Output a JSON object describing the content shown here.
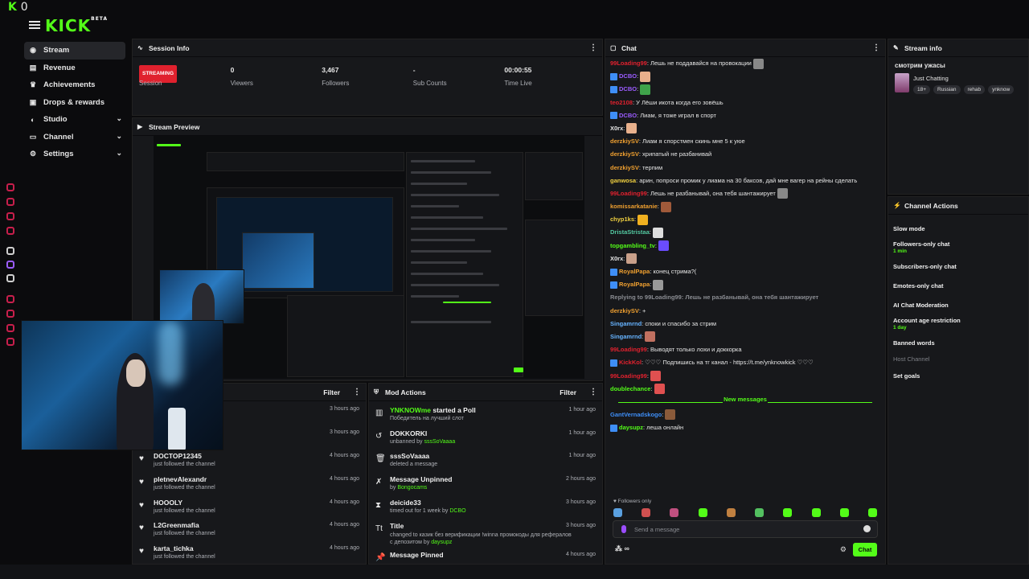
{
  "topbar": {
    "k0_k": "K",
    "k0_n": "0",
    "logo": "KICK",
    "logo_sup": "BETA"
  },
  "sidebar": {
    "items": [
      {
        "label": "Stream",
        "icon": "stream-icon"
      },
      {
        "label": "Revenue",
        "icon": "revenue-icon"
      },
      {
        "label": "Achievements",
        "icon": "trophy-icon"
      },
      {
        "label": "Drops & rewards",
        "icon": "gift-icon"
      },
      {
        "label": "Studio",
        "icon": "studio-icon"
      },
      {
        "label": "Channel",
        "icon": "channel-icon"
      },
      {
        "label": "Settings",
        "icon": "gear-icon"
      }
    ]
  },
  "session": {
    "title": "Session Info",
    "badge": "STREAMING",
    "cols": [
      {
        "value": "",
        "label": "Session"
      },
      {
        "value": "0",
        "label": "Viewers"
      },
      {
        "value": "3,467",
        "label": "Followers"
      },
      {
        "value": "-",
        "label": "Sub Counts"
      },
      {
        "value": "00:00:55",
        "label": "Time Live"
      }
    ]
  },
  "preview": {
    "title": "Stream Preview"
  },
  "activity": {
    "filter": "Filter",
    "items": [
      {
        "name": "",
        "sub": "",
        "time": "3 hours ago"
      },
      {
        "name": "",
        "sub": "",
        "time": "3 hours ago"
      },
      {
        "name": "DOCTOP12345",
        "sub": "just followed the channel",
        "time": "4 hours ago"
      },
      {
        "name": "pletnevAlexandr",
        "sub": "just followed the channel",
        "time": "4 hours ago"
      },
      {
        "name": "HOOOLY",
        "sub": "just followed the channel",
        "time": "4 hours ago"
      },
      {
        "name": "L2Greenmafia",
        "sub": "just followed the channel",
        "time": "4 hours ago"
      },
      {
        "name": "karta_tichka",
        "sub": "just followed the channel",
        "time": "4 hours ago"
      }
    ]
  },
  "mod": {
    "title": "Mod Actions",
    "filter": "Filter",
    "items": [
      {
        "icon": "poll-icon",
        "t1": "YNKNOWme",
        "t2": " started a Poll",
        "s1": "Победитель на лучший слот",
        "s2": "",
        "time": "1 hour ago"
      },
      {
        "icon": "unban-icon",
        "t1": "DOKKORKI",
        "t2": "",
        "s1": "unbanned by ",
        "s2": "sssSoVaaaa",
        "time": "1 hour ago"
      },
      {
        "icon": "trash-icon",
        "t1": "sssSoVaaaa",
        "t2": "",
        "s1": "deleted a message",
        "s2": "",
        "time": "1 hour ago"
      },
      {
        "icon": "unpin-icon",
        "t1": "Message Unpinned",
        "t2": "",
        "s1": "by ",
        "s2": "Bongocams",
        "time": "2 hours ago"
      },
      {
        "icon": "hourglass-icon",
        "t1": "deicide33",
        "t2": "",
        "s1": "timed out for 1 week by ",
        "s2": "DCBO",
        "time": "3 hours ago"
      },
      {
        "icon": "title-icon",
        "t1": "Title",
        "t2": "",
        "s1": "changed to казик без верификации !winna промокоды для рефералов с депозитом by ",
        "s2": "daysupz",
        "time": "3 hours ago"
      },
      {
        "icon": "pin-icon",
        "t1": "Message Pinned",
        "t2": "",
        "s1": "",
        "s2": "",
        "time": "4 hours ago"
      }
    ]
  },
  "chat": {
    "title": "Chat",
    "lines": [
      {
        "user": "99Loading99",
        "color": "#e0212e",
        "mod": false,
        "text": ": Лешь не поддавайся на провокации",
        "emote": "#888"
      },
      {
        "user": "DCBO",
        "color": "#9b5cff",
        "mod": true,
        "text": ":",
        "emote": "#e8b08c"
      },
      {
        "user": "DCBO",
        "color": "#9b5cff",
        "mod": true,
        "text": ":",
        "emote": "#3fa34a"
      },
      {
        "user": "teo2108",
        "color": "#e0212e",
        "mod": false,
        "text": ": У Лёши икота когда его зовёшь",
        "emote": ""
      },
      {
        "user": "DCBO",
        "color": "#9b5cff",
        "mod": true,
        "text": ": Лиам, я тоже играл в спорт",
        "emote": ""
      },
      {
        "user": "X0rx",
        "color": "#e6e6e6",
        "mod": false,
        "text": ":",
        "emote": "#e8b08c"
      },
      {
        "user": "derzkiySV",
        "color": "#f0a030",
        "mod": false,
        "text": ": Лиам я спорстмен скинь мне 5 к уюе",
        "emote": ""
      },
      {
        "user": "derzkiySV",
        "color": "#f0a030",
        "mod": false,
        "text": ": хрипатый не разбанивай",
        "emote": ""
      },
      {
        "user": "derzkiySV",
        "color": "#f0a030",
        "mod": false,
        "text": ": терпим",
        "emote": ""
      },
      {
        "user": "ganwosa",
        "color": "#f0d040",
        "mod": false,
        "text": ": арин, попроси промик у лиама на 30 баксов, дай мне вагер на рейны сделать",
        "emote": ""
      },
      {
        "user": "99Loading99",
        "color": "#e0212e",
        "mod": false,
        "text": ": Лешь не разбанывай, она тебя шантажирует",
        "emote": "#888"
      },
      {
        "user": "komissarkatanie",
        "color": "#f0a030",
        "mod": false,
        "text": ":",
        "emote": "#a05a3a"
      },
      {
        "user": "chyp1ks",
        "color": "#f0d040",
        "mod": false,
        "text": ":",
        "emote": "#f0b020"
      },
      {
        "user": "DristaStristaa",
        "color": "#53c8a0",
        "mod": false,
        "text": ":",
        "emote": "#ddd"
      },
      {
        "user": "topgambling_tv",
        "color": "#53fc18",
        "mod": false,
        "text": ":",
        "emote": "#6a4cff"
      },
      {
        "user": "X0rx",
        "color": "#e6e6e6",
        "mod": false,
        "text": ":",
        "emote": "#c9a08a"
      },
      {
        "user": "RoyalPapa",
        "color": "#f0a030",
        "mod": true,
        "text": ": конец стрима?(",
        "emote": ""
      },
      {
        "user": "RoyalPapa",
        "color": "#f0a030",
        "mod": true,
        "text": ":",
        "emote": "#999"
      },
      {
        "user": "Replying to 99Loading99: Лешь не разбанывай, она тебя шантажирует",
        "color": "#8a8c92",
        "mod": false,
        "text": "",
        "emote": ""
      },
      {
        "user": "derzkiySV",
        "color": "#f0a030",
        "mod": false,
        "text": ": +",
        "emote": ""
      },
      {
        "user": "Singamrnd",
        "color": "#66b3ff",
        "mod": false,
        "text": ": споки и спасибо за стрим",
        "emote": ""
      },
      {
        "user": "Singamrnd",
        "color": "#66b3ff",
        "mod": false,
        "text": ":",
        "emote": "#c07060"
      },
      {
        "user": "99Loading99",
        "color": "#e0212e",
        "mod": false,
        "text": ": Выводят только лохи и доккорка",
        "emote": ""
      },
      {
        "user": "KickKol",
        "color": "#e0212e",
        "mod": true,
        "text": ": ♡♡♡ Подпишись на тг канал - https://t.me/ynknowkick ♡♡♡",
        "emote": ""
      },
      {
        "user": "99Loading99",
        "color": "#e0212e",
        "mod": false,
        "text": ":",
        "emote": "#e05050"
      },
      {
        "user": "doublechance",
        "color": "#53fc18",
        "mod": false,
        "text": ":",
        "emote": "#e05050"
      }
    ],
    "new_messages": "New messages",
    "after": [
      {
        "user": "GantVernadskogo",
        "color": "#3e8ef7",
        "mod": false,
        "text": ":",
        "emote": "#8a5a3a"
      },
      {
        "user": "daysupz",
        "color": "#53fc18",
        "mod": true,
        "text": ": леша онлайн",
        "emote": ""
      }
    ],
    "followers_only": "♥ Followers only",
    "input_placeholder": "Send a message",
    "send_label": "Chat",
    "points": "∞"
  },
  "stream_info": {
    "title": "Stream info",
    "stream_title": "смотрим ужасы",
    "category": "Just Chatting",
    "tags": [
      "18+",
      "Russian",
      "rehab",
      "ynknow"
    ]
  },
  "channel_actions": {
    "title": "Channel Actions",
    "items": [
      {
        "label": "Slow mode",
        "sub": ""
      },
      {
        "label": "Followers-only chat",
        "sub": "1 min"
      },
      {
        "label": "Subscribers-only chat",
        "sub": ""
      },
      {
        "label": "Emotes-only chat",
        "sub": ""
      },
      {
        "label": "AI Chat Moderation",
        "sub": ""
      },
      {
        "label": "Account age restriction",
        "sub": "1 day"
      },
      {
        "label": "Banned words",
        "sub": ""
      },
      {
        "label": "Host Channel",
        "sub": ""
      },
      {
        "label": "Set goals",
        "sub": ""
      }
    ]
  },
  "colors": {
    "accent": "#53fc18",
    "live": "#e0212e",
    "panel": "#17181b",
    "bg": "#0b0b0d"
  }
}
